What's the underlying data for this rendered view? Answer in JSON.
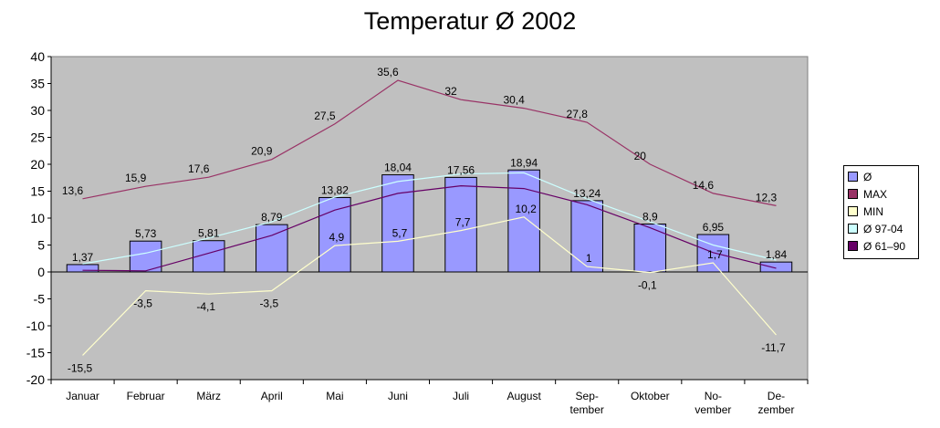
{
  "chart_data": {
    "type": "bar",
    "title": "Temperatur Ø 2002",
    "categories": [
      [
        "Januar"
      ],
      [
        "Februar"
      ],
      [
        "März"
      ],
      [
        "April"
      ],
      [
        "Mai"
      ],
      [
        "Juni"
      ],
      [
        "Juli"
      ],
      [
        "August"
      ],
      [
        "Sep-",
        "tember"
      ],
      [
        "Oktober"
      ],
      [
        "No-",
        "vember"
      ],
      [
        "De-",
        "zember"
      ]
    ],
    "ylim": [
      -20,
      40
    ],
    "yticks": [
      -20,
      -15,
      -10,
      -5,
      0,
      5,
      10,
      15,
      20,
      25,
      30,
      35,
      40
    ],
    "grid": false,
    "legend_position": "right",
    "series": [
      {
        "name": "Ø",
        "kind": "bar",
        "color": "#9999ff",
        "values": [
          1.37,
          5.73,
          5.81,
          8.79,
          13.82,
          18.04,
          17.56,
          18.94,
          13.24,
          8.9,
          6.95,
          1.84
        ],
        "labels": [
          "1,37",
          "5,73",
          "5,81",
          "8,79",
          "13,82",
          "18,04",
          "17,56",
          "18,94",
          "13,24",
          "8,9",
          "6,95",
          "1,84"
        ]
      },
      {
        "name": "MAX",
        "kind": "line",
        "color": "#993366",
        "values": [
          13.6,
          15.9,
          17.6,
          20.9,
          27.5,
          35.6,
          32,
          30.4,
          27.8,
          20,
          14.6,
          12.3
        ],
        "labels": [
          "13,6",
          "15,9",
          "17,6",
          "20,9",
          "27,5",
          "35,6",
          "32",
          "30,4",
          "27,8",
          "20",
          "14,6",
          "12,3"
        ]
      },
      {
        "name": "MIN",
        "kind": "line",
        "color": "#ffffcc",
        "values": [
          -15.5,
          -3.5,
          -4.1,
          -3.5,
          4.9,
          5.7,
          7.7,
          10.2,
          1,
          -0.1,
          1.7,
          -11.7
        ],
        "labels": [
          "-15,5",
          "-3,5",
          "-4,1",
          "-3,5",
          "4,9",
          "5,7",
          "7,7",
          "10,2",
          "1",
          "-0,1",
          "1,7",
          "-11,7"
        ]
      },
      {
        "name": "Ø 97-04",
        "kind": "line",
        "color": "#ccffff",
        "values": [
          1.5,
          3.5,
          6.3,
          9.3,
          13.9,
          16.8,
          18.2,
          18.4,
          13.6,
          9.3,
          5.0,
          2.2
        ]
      },
      {
        "name": "Ø 61–90",
        "kind": "line",
        "color": "#660066",
        "values": [
          0.3,
          0.2,
          3.5,
          6.8,
          11.5,
          14.6,
          16.0,
          15.5,
          12.5,
          8.2,
          3.6,
          0.7
        ]
      }
    ]
  }
}
